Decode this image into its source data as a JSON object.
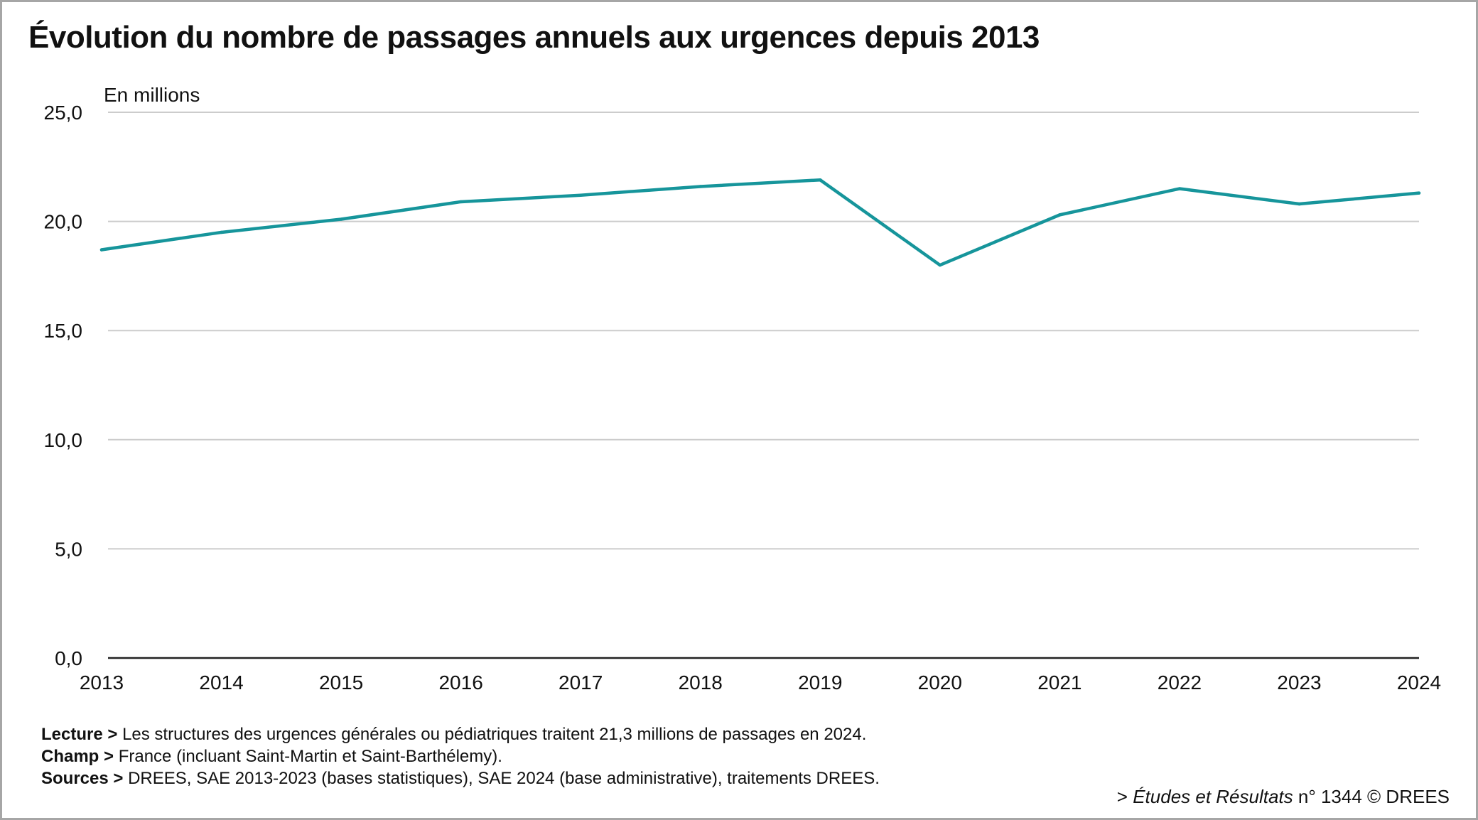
{
  "title": "Évolution du nombre de passages annuels aux urgences depuis 2013",
  "chart_data": {
    "type": "line",
    "title": "Évolution du nombre de passages annuels aux urgences depuis 2013",
    "ylabel": "En millions",
    "xlabel": "",
    "categories": [
      "2013",
      "2014",
      "2015",
      "2016",
      "2017",
      "2018",
      "2019",
      "2020",
      "2021",
      "2022",
      "2023",
      "2024"
    ],
    "series": [
      {
        "values": [
          18.7,
          19.5,
          20.1,
          20.9,
          21.2,
          21.6,
          21.9,
          18.0,
          20.3,
          21.5,
          20.8,
          21.3
        ]
      }
    ],
    "ylim": [
      0,
      25
    ],
    "yticks": [
      0,
      5,
      10,
      15,
      20,
      25
    ],
    "ytick_labels": [
      "0,0",
      "5,0",
      "10,0",
      "15,0",
      "20,0",
      "25,0"
    ],
    "grid": true,
    "line_color": "#16959b",
    "grid_color": "#cccccc"
  },
  "notes": {
    "lecture_label": "Lecture >",
    "lecture_text": "Les structures des urgences générales ou pédiatriques traitent 21,3 millions de passages en 2024.",
    "champ_label": "Champ >",
    "champ_text": "France (incluant Saint-Martin et Saint-Barthélemy).",
    "sources_label": "Sources >",
    "sources_text": "DREES, SAE 2013-2023 (bases statistiques), SAE 2024 (base administrative), traitements DREES."
  },
  "credit": {
    "prefix": "> ",
    "publication": "Études et Résultats",
    "number": " n° 1344 © DREES"
  }
}
